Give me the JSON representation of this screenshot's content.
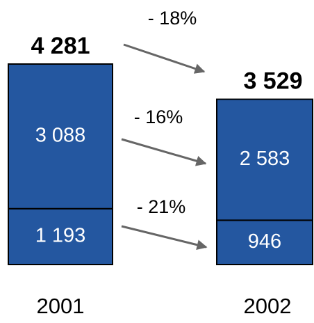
{
  "chart_data": {
    "type": "stacked_bar",
    "categories": [
      "2001",
      "2002"
    ],
    "series": [
      {
        "name": null,
        "color": "#2457a0",
        "values": [
          1193,
          946
        ],
        "value_labels": [
          "1 193",
          "946"
        ]
      },
      {
        "name": null,
        "color": "#2457a0",
        "values": [
          3088,
          2583
        ],
        "value_labels": [
          "3 088",
          "2 583"
        ]
      }
    ],
    "totals": [
      4281,
      3529
    ],
    "total_labels": [
      "4 281",
      "3 529"
    ],
    "annotations": [
      "- 18%",
      "- 16%",
      "- 21%"
    ]
  }
}
